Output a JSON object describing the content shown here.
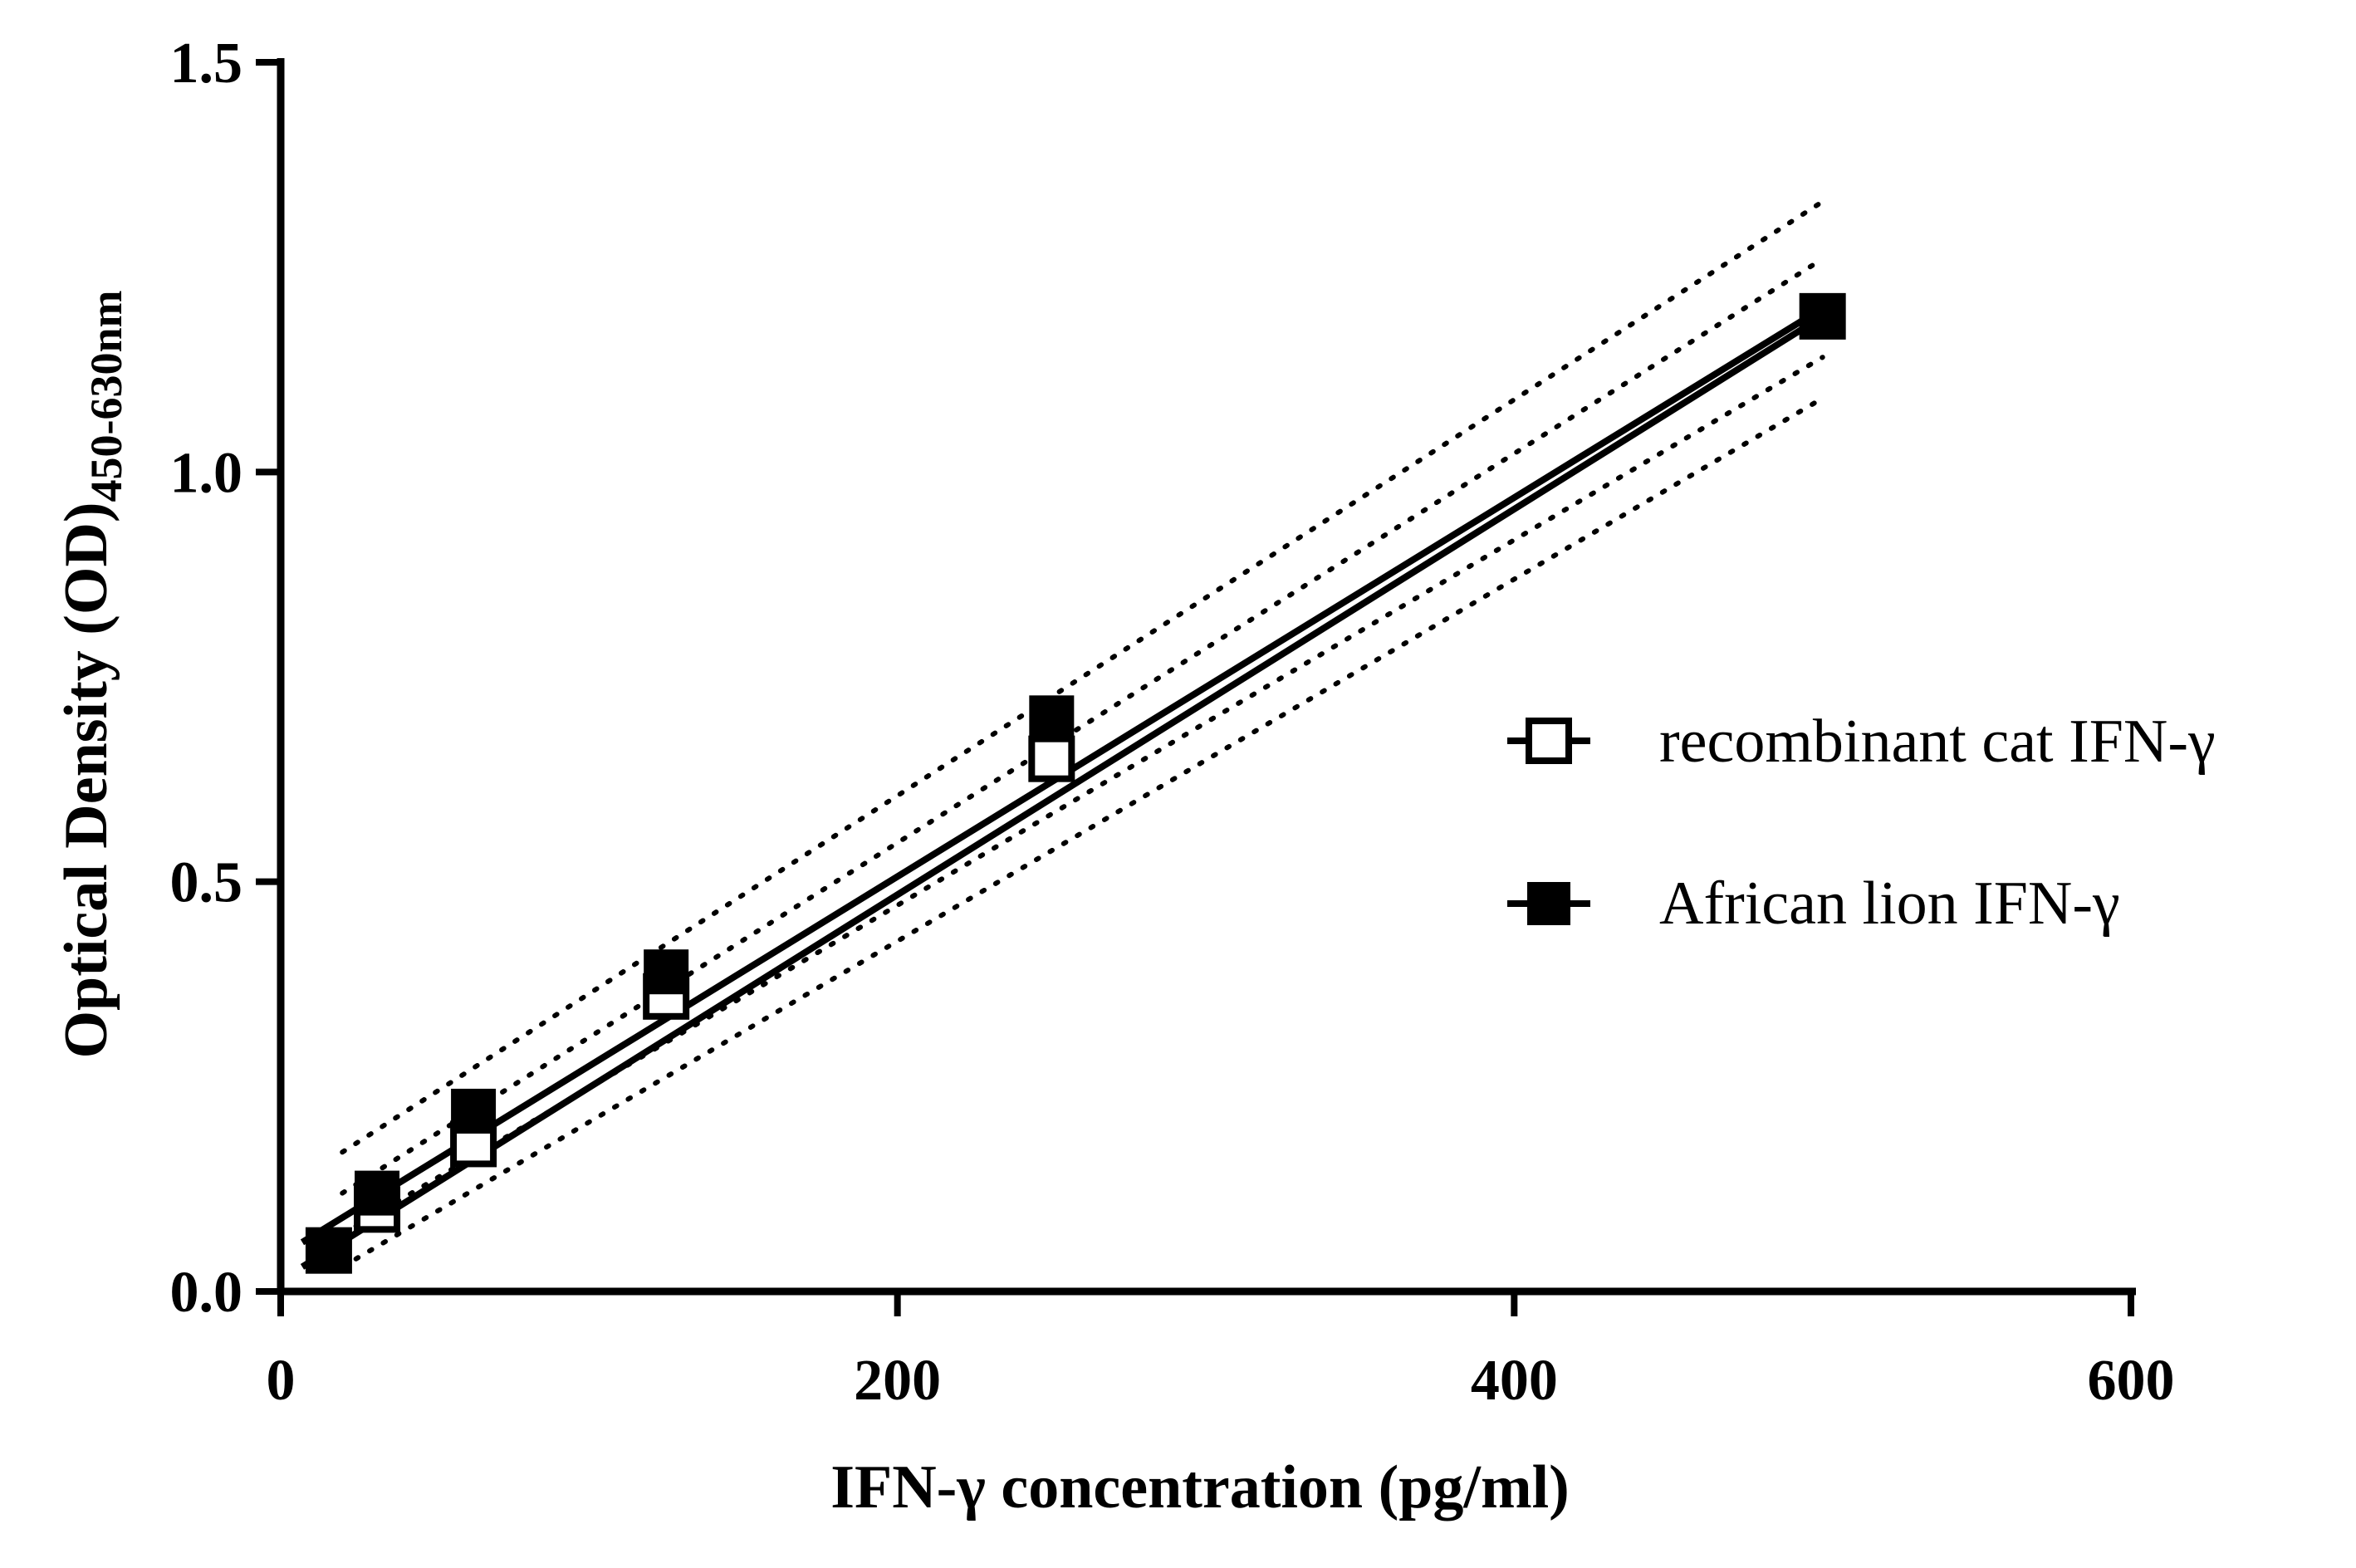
{
  "chart_data": {
    "type": "scatter",
    "title": "",
    "xlabel": "IFN-γ concentration (pg/ml)",
    "ylabel_main": "Optical Density (OD)",
    "ylabel_sub": "450-630nm",
    "xlim": [
      0,
      600
    ],
    "ylim": [
      0,
      1.5
    ],
    "x_ticks": [
      "0",
      "200",
      "400",
      "600"
    ],
    "y_ticks": [
      "0.0",
      "0.5",
      "1.0",
      "1.5"
    ],
    "grid": false,
    "legend_position": "right",
    "series": [
      {
        "name": "recombinant cat IFN-γ",
        "marker": "open-square",
        "x": [
          15.6,
          31.25,
          62.5,
          125,
          250,
          500
        ],
        "y": [
          0.05,
          0.1,
          0.18,
          0.36,
          0.65,
          1.19
        ],
        "fit": {
          "x_start": 7,
          "y_start": 0.03,
          "x_end": 500,
          "y_end": 1.19
        }
      },
      {
        "name": "African lion IFN-γ",
        "marker": "filled-square",
        "x": [
          15.6,
          31.25,
          62.5,
          125,
          250,
          500
        ],
        "y": [
          0.05,
          0.12,
          0.22,
          0.39,
          0.7,
          1.19
        ],
        "fit": {
          "x_start": 7,
          "y_start": 0.06,
          "x_end": 500,
          "y_end": 1.2
        }
      }
    ],
    "confidence_bands": [
      {
        "x": [
          20,
          500
        ],
        "y": [
          0.17,
          1.33
        ]
      },
      {
        "x": [
          20,
          500
        ],
        "y": [
          0.12,
          1.26
        ]
      },
      {
        "x": [
          20,
          500
        ],
        "y": [
          0.07,
          1.14
        ]
      },
      {
        "x": [
          20,
          500
        ],
        "y": [
          0.03,
          1.09
        ]
      }
    ]
  }
}
